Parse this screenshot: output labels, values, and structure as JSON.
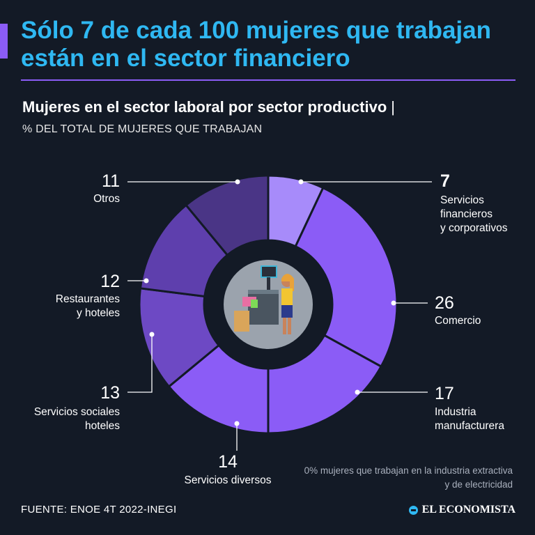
{
  "headline": "Sólo 7 de cada 100 mujeres que trabajan están en el sector financiero",
  "chart_title": "Mujeres en el sector laboral por sector productivo",
  "chart_title_separator": "|",
  "chart_subtitle": "% DEL TOTAL DE MUJERES QUE TRABAJAN",
  "note": "0% mujeres que trabajan en la industria extractiva y de electricidad",
  "source": "FUENTE: ENOE 4T 2022-INEGI",
  "brand": "EL ECONOMISTA",
  "colors": {
    "background": "#131a26",
    "headline": "#2fb8f2",
    "accent": "#8b5cf6",
    "segment_separator": "#131a26"
  },
  "chart_data": {
    "type": "pie",
    "variant": "donut",
    "center_icon": "woman-at-checkout-counter-illustration",
    "categories": [
      "Servicios financieros y corporativos",
      "Comercio",
      "Industria manufacturera",
      "Servicios diversos",
      "Servicios sociales hoteles",
      "Restaurantes y hoteles",
      "Otros"
    ],
    "values": [
      7,
      26,
      17,
      14,
      13,
      12,
      11
    ],
    "label_lines": [
      [
        "Servicios",
        "financieros",
        "y corporativos"
      ],
      [
        "Comercio"
      ],
      [
        "Industria",
        "manufacturera"
      ],
      [
        "Servicios diversos"
      ],
      [
        "Servicios sociales",
        "hoteles"
      ],
      [
        "Restaurantes",
        "y hoteles"
      ],
      [
        "Otros"
      ]
    ],
    "colors": [
      "#a78bfa",
      "#8b5cf6",
      "#8b5cf6",
      "#8b5cf6",
      "#6d49c4",
      "#5e3fad",
      "#4a3586"
    ],
    "highlight": "Servicios financieros y corporativos"
  }
}
